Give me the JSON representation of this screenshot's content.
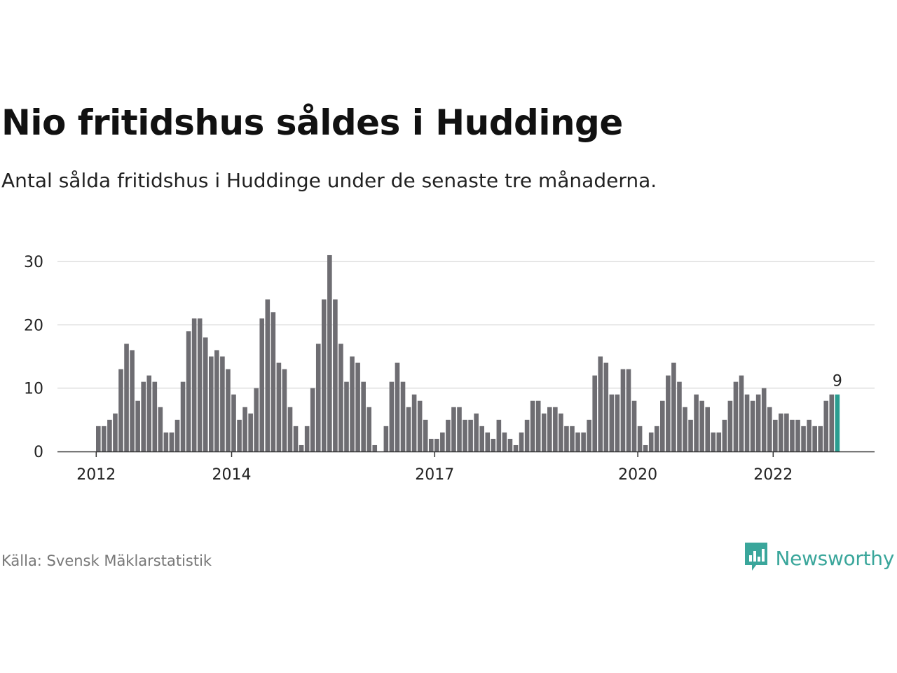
{
  "title": "Nio fritidshus såldes i Huddinge",
  "subtitle": "Antal sålda fritidshus i Huddinge under de senaste tre månaderna.",
  "source": "Källa: Svensk Mäklarstatistik",
  "brand": {
    "name": "Newsworthy",
    "color": "#3aa69b",
    "icon": "newsworthy-logo-icon"
  },
  "colors": {
    "bar": "#6e6d72",
    "highlight": "#2a9d90",
    "grid": "#dddddd",
    "axis": "#333333"
  },
  "chart_data": {
    "type": "bar",
    "title": "",
    "xlabel": "",
    "ylabel": "",
    "ylim": [
      0,
      30
    ],
    "y_ticks": [
      0,
      10,
      20,
      30
    ],
    "grid": true,
    "x_tick_labels": [
      {
        "label": "2012",
        "index": 0
      },
      {
        "label": "2014",
        "index": 24
      },
      {
        "label": "2017",
        "index": 60
      },
      {
        "label": "2020",
        "index": 96
      },
      {
        "label": "2022",
        "index": 120
      }
    ],
    "values": [
      4,
      4,
      5,
      6,
      13,
      17,
      16,
      8,
      11,
      12,
      11,
      7,
      3,
      3,
      5,
      11,
      19,
      21,
      21,
      18,
      15,
      16,
      15,
      13,
      9,
      5,
      7,
      6,
      10,
      21,
      24,
      22,
      14,
      13,
      7,
      4,
      1,
      4,
      10,
      17,
      24,
      31,
      24,
      17,
      11,
      15,
      14,
      11,
      7,
      1,
      0,
      4,
      11,
      14,
      11,
      7,
      9,
      8,
      5,
      2,
      2,
      3,
      5,
      7,
      7,
      5,
      5,
      6,
      4,
      3,
      2,
      5,
      3,
      2,
      1,
      3,
      5,
      8,
      8,
      6,
      7,
      7,
      6,
      4,
      4,
      3,
      3,
      5,
      12,
      15,
      14,
      9,
      9,
      13,
      13,
      8,
      4,
      1,
      3,
      4,
      8,
      12,
      14,
      11,
      7,
      5,
      9,
      8,
      7,
      3,
      3,
      5,
      8,
      11,
      12,
      9,
      8,
      9,
      10,
      7,
      5,
      6,
      6,
      5,
      5,
      4,
      5,
      4,
      4,
      8,
      9,
      9
    ],
    "highlight_last": true,
    "last_value_label": "9"
  }
}
